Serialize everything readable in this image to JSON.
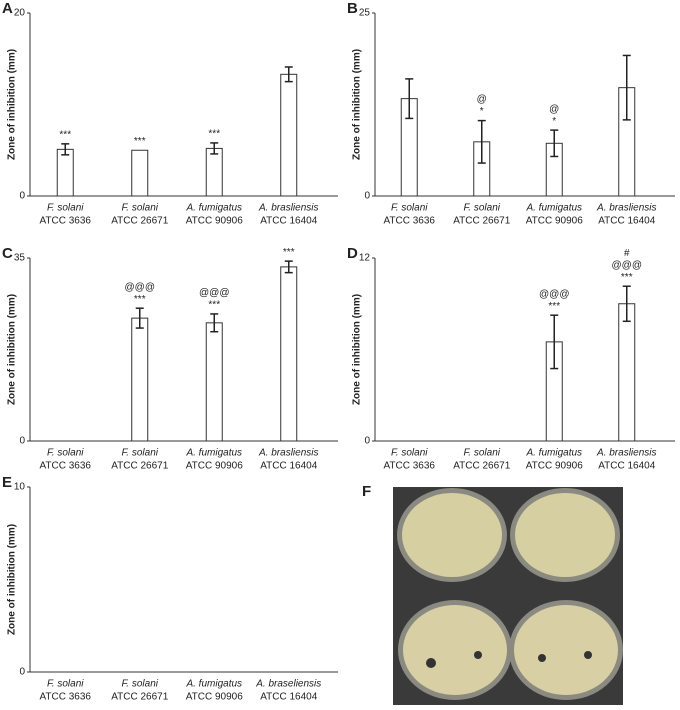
{
  "chart_data": [
    {
      "type": "bar",
      "panel": "A",
      "y_label": "Zone of inhibition (mm)",
      "ylim": [
        0,
        20
      ],
      "yticks": [
        0,
        20
      ],
      "categories": [
        [
          "F. solani",
          "ATCC 3636"
        ],
        [
          "F. solani",
          "ATCC 26671"
        ],
        [
          "A. fumigatus",
          "ATCC 90906"
        ],
        [
          "A. brasliensis",
          "ATCC 16404"
        ]
      ],
      "values": [
        5.1,
        5.0,
        5.2,
        13.3
      ],
      "errors": [
        0.6,
        0,
        0.6,
        0.8
      ],
      "annotations": [
        [
          "***"
        ],
        [
          "***"
        ],
        [
          "***"
        ],
        []
      ],
      "color": "#ffffff"
    },
    {
      "type": "bar",
      "panel": "B",
      "y_label": "Zone of inhibition (mm)",
      "ylim": [
        0,
        25
      ],
      "yticks": [
        0,
        25
      ],
      "categories": [
        [
          "F. solani",
          "ATCC 3636"
        ],
        [
          "F. solani",
          "ATCC 26671"
        ],
        [
          "A. fumigatus",
          "ATCC 90906"
        ],
        [
          "A. brasliensis",
          "ATCC 16404"
        ]
      ],
      "values": [
        13.3,
        7.4,
        7.2,
        14.8
      ],
      "errors": [
        2.7,
        2.9,
        1.8,
        4.4
      ],
      "annotations": [
        [],
        [
          "@",
          "*"
        ],
        [
          "@",
          "*"
        ],
        []
      ],
      "color": "#ffffff"
    },
    {
      "type": "bar",
      "panel": "C",
      "y_label": "Zone of inhibition (mm)",
      "ylim": [
        0,
        35
      ],
      "yticks": [
        0,
        35
      ],
      "categories": [
        [
          "F. solani",
          "ATCC 3636"
        ],
        [
          "F. solani",
          "ATCC 26671"
        ],
        [
          "A. fumigatus",
          "ATCC 90906"
        ],
        [
          "A. brasliensis",
          "ATCC 16404"
        ]
      ],
      "values": [
        0,
        23.5,
        22.6,
        33.3
      ],
      "errors": [
        0,
        1.9,
        1.7,
        1.1
      ],
      "annotations": [
        [],
        [
          "@@@",
          "***"
        ],
        [
          "@@@",
          "***"
        ],
        [
          "***"
        ]
      ],
      "color": "#ffffff"
    },
    {
      "type": "bar",
      "panel": "D",
      "y_label": "Zone of inhibition (mm)",
      "ylim": [
        0,
        12
      ],
      "yticks": [
        0,
        12
      ],
      "categories": [
        [
          "F. solani",
          "ATCC 3636"
        ],
        [
          "F. solani",
          "ATCC 26671"
        ],
        [
          "A. fumigatus",
          "ATCC 90906"
        ],
        [
          "A. brasliensis",
          "ATCC 16404"
        ]
      ],
      "values": [
        0,
        0,
        6.5,
        9.0
      ],
      "errors": [
        0,
        0,
        1.75,
        1.15
      ],
      "annotations": [
        [],
        [],
        [
          "@@@",
          "***"
        ],
        [
          "#",
          "@@@",
          "***"
        ]
      ],
      "color": "#ffffff"
    },
    {
      "type": "bar",
      "panel": "E",
      "y_label": "Zone of inhibition (mm)",
      "ylim": [
        0,
        10
      ],
      "yticks": [
        0,
        10
      ],
      "categories": [
        [
          "F. solani",
          "ATCC 3636"
        ],
        [
          "F. solani",
          "ATCC 26671"
        ],
        [
          "A. fumigatus",
          "ATCC 90906"
        ],
        [
          "A. braseliensis",
          "ATCC 16404"
        ]
      ],
      "values": [
        0,
        0,
        0,
        0
      ],
      "errors": [
        0,
        0,
        0,
        0
      ],
      "annotations": [
        [],
        [],
        [],
        []
      ],
      "color": "#ffffff"
    }
  ],
  "photo_panel": {
    "panel": "F"
  }
}
